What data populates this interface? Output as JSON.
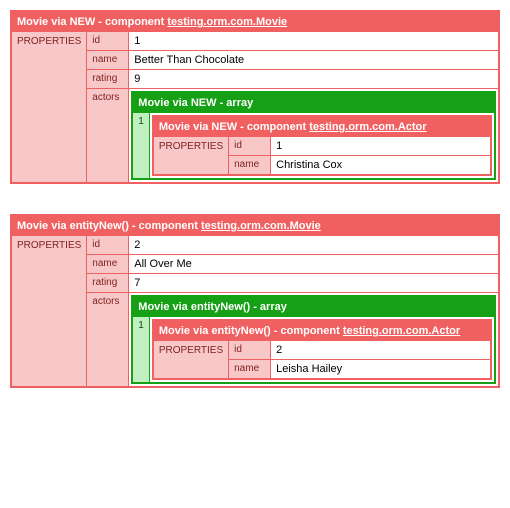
{
  "colors": {
    "red_border": "#f06060",
    "red_bg": "#f8c8c8",
    "red_text": "#802020",
    "green_border": "#16a016",
    "green_bg": "#c0f0c0",
    "green_text": "#0a500a",
    "white": "#ffffff"
  },
  "dumps": [
    {
      "title_prefix": "Movie via NEW - component ",
      "title_link": "testing.orm.com.Movie",
      "properties_label": "PROPERTIES",
      "rows": {
        "id_key": "id",
        "id_val": "1",
        "name_key": "name",
        "name_val": "Better Than Chocolate",
        "rating_key": "rating",
        "rating_val": "9",
        "actors_key": "actors"
      },
      "array": {
        "title": "Movie via NEW - array",
        "index": "1",
        "component": {
          "title_prefix": "Movie via NEW - component ",
          "title_link": "testing.orm.com.Actor",
          "properties_label": "PROPERTIES",
          "rows": {
            "id_key": "id",
            "id_val": "1",
            "name_key": "name",
            "name_val": "Christina Cox"
          }
        }
      }
    },
    {
      "title_prefix": "Movie via entityNew() - component ",
      "title_link": "testing.orm.com.Movie",
      "properties_label": "PROPERTIES",
      "rows": {
        "id_key": "id",
        "id_val": "2",
        "name_key": "name",
        "name_val": "All Over Me",
        "rating_key": "rating",
        "rating_val": "7",
        "actors_key": "actors"
      },
      "array": {
        "title": "Movie via entityNew() - array",
        "index": "1",
        "component": {
          "title_prefix": "Movie via entityNew() - component ",
          "title_link": "testing.orm.com.Actor",
          "properties_label": "PROPERTIES",
          "rows": {
            "id_key": "id",
            "id_val": "2",
            "name_key": "name",
            "name_val": "Leisha Hailey"
          }
        }
      }
    }
  ]
}
